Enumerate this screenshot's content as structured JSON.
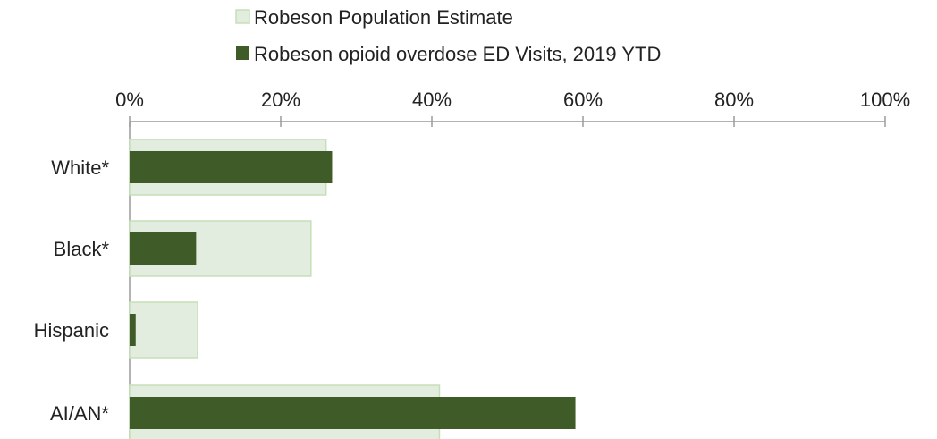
{
  "chart_data": {
    "type": "bar",
    "orientation": "horizontal",
    "categories": [
      "White*",
      "Black*",
      "Hispanic",
      "AI/AN*"
    ],
    "series": [
      {
        "name": "Robeson Population Estimate",
        "values": [
          26,
          24,
          9,
          41
        ],
        "color": "#e2eddf",
        "border_color": "#c6dfb6",
        "role": "background"
      },
      {
        "name": "Robeson opioid overdose ED Visits, 2019 YTD",
        "values": [
          26.8,
          8.8,
          0.8,
          59
        ],
        "color": "#3f5b27",
        "role": "foreground"
      }
    ],
    "xlim": [
      0,
      100
    ],
    "x_ticks": [
      "0%",
      "20%",
      "40%",
      "60%",
      "80%",
      "100%"
    ],
    "x_tick_values": [
      0,
      20,
      40,
      60,
      80,
      100
    ],
    "x_axis_position": "top",
    "legend_position": "top",
    "grid": false,
    "axis_color": "#9a9a9a"
  }
}
